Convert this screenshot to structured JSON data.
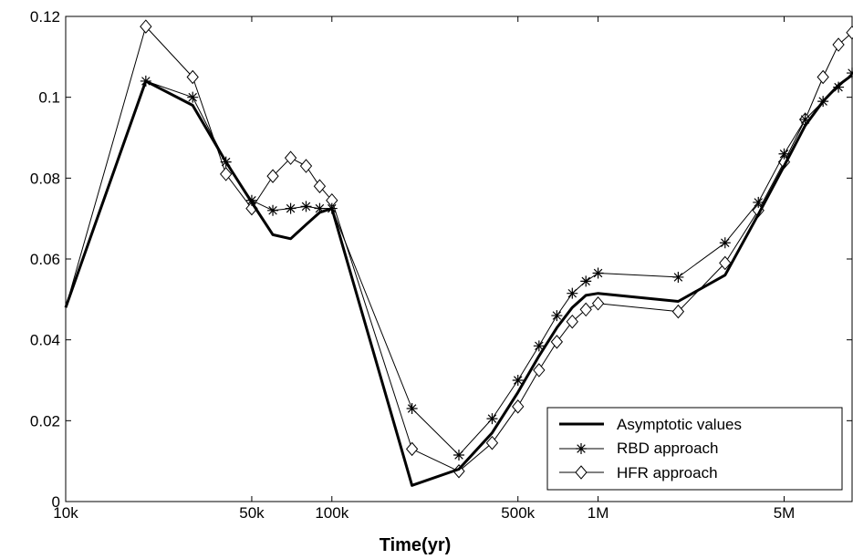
{
  "chart_data": {
    "type": "line",
    "xlabel": "Time(yr)",
    "ylabel": "",
    "title": "",
    "x_scale": "log",
    "xlim": [
      10000,
      9000000
    ],
    "ylim": [
      0,
      0.12
    ],
    "x_ticks": [
      {
        "value": 10000,
        "label": "10k"
      },
      {
        "value": 50000,
        "label": "50k"
      },
      {
        "value": 100000,
        "label": "100k"
      },
      {
        "value": 500000,
        "label": "500k"
      },
      {
        "value": 1000000,
        "label": "1M"
      },
      {
        "value": 5000000,
        "label": "5M"
      }
    ],
    "y_ticks": [
      {
        "value": 0,
        "label": "0"
      },
      {
        "value": 0.02,
        "label": "0.02"
      },
      {
        "value": 0.04,
        "label": "0.04"
      },
      {
        "value": 0.06,
        "label": "0.06"
      },
      {
        "value": 0.08,
        "label": "0.08"
      },
      {
        "value": 0.1,
        "label": "0.1"
      },
      {
        "value": 0.12,
        "label": "0.12"
      }
    ],
    "grid": false,
    "legend_position": "bottom-right",
    "x": [
      10000,
      20000,
      30000,
      40000,
      50000,
      60000,
      70000,
      80000,
      90000,
      100000,
      200000,
      300000,
      400000,
      500000,
      600000,
      700000,
      800000,
      900000,
      1000000,
      2000000,
      3000000,
      4000000,
      5000000,
      6000000,
      7000000,
      8000000,
      9000000
    ],
    "series": [
      {
        "name": "Asymptotic values",
        "marker": "none",
        "color": "#000000",
        "values": [
          0.048,
          0.104,
          0.098,
          0.084,
          0.074,
          0.066,
          0.065,
          0.0685,
          0.0715,
          0.0725,
          0.004,
          0.008,
          0.017,
          0.027,
          0.036,
          0.043,
          0.048,
          0.051,
          0.0515,
          0.0495,
          0.056,
          0.071,
          0.083,
          0.093,
          0.099,
          0.103,
          0.1055
        ]
      },
      {
        "name": "RBD approach",
        "marker": "star",
        "color": "#000000",
        "values": [
          0.048,
          0.104,
          0.1,
          0.084,
          0.0745,
          0.072,
          0.0725,
          0.073,
          0.0725,
          0.0725,
          0.023,
          0.0115,
          0.0205,
          0.03,
          0.0385,
          0.046,
          0.0515,
          0.0545,
          0.0565,
          0.0555,
          0.064,
          0.074,
          0.086,
          0.0945,
          0.099,
          0.1025,
          0.106
        ]
      },
      {
        "name": "HFR approach",
        "marker": "diamond",
        "color": "#000000",
        "values": [
          0.048,
          0.1175,
          0.105,
          0.081,
          0.0725,
          0.0805,
          0.085,
          0.083,
          0.078,
          0.0745,
          0.013,
          0.0075,
          0.0145,
          0.0235,
          0.0325,
          0.0395,
          0.0445,
          0.0475,
          0.049,
          0.047,
          0.059,
          0.072,
          0.084,
          0.0945,
          0.105,
          0.113,
          0.116
        ]
      }
    ]
  }
}
